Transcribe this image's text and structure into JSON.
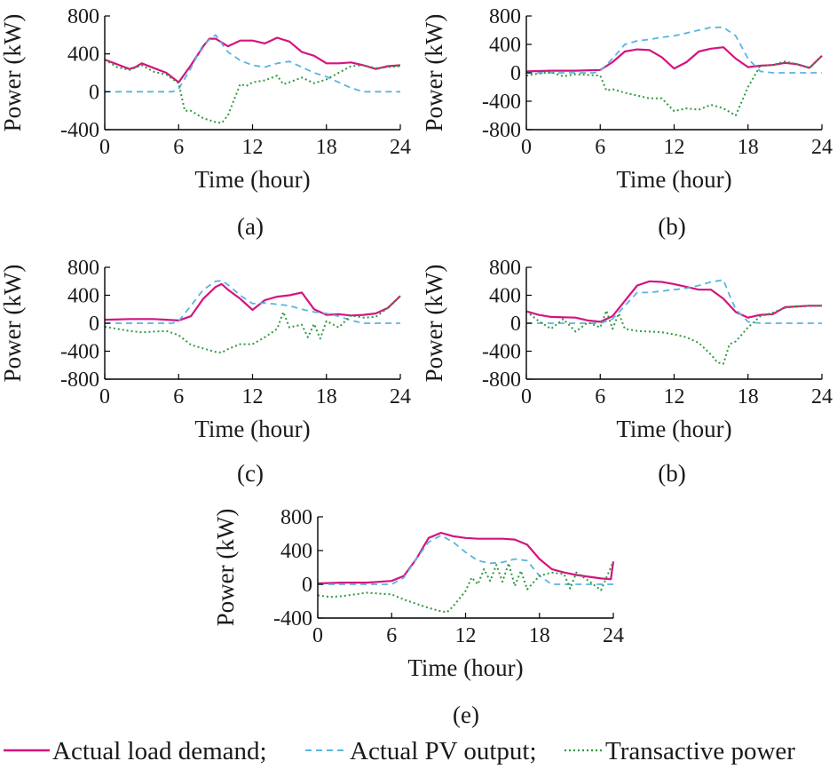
{
  "legend": [
    {
      "label": "Actual load demand;",
      "color": "#d4147f",
      "dash": "solid"
    },
    {
      "label": "Actual PV output;",
      "color": "#5ab4e0",
      "dash": "dashed"
    },
    {
      "label": "Transactive power",
      "color": "#2e9a3e",
      "dash": "dotted"
    }
  ],
  "chart_data": [
    {
      "type": "line",
      "panel_label": "(a)",
      "xlabel": "Time (hour)",
      "ylabel": "Power (kW)",
      "xlim": [
        0,
        24
      ],
      "ylim": [
        -400,
        800
      ],
      "xticks": [
        0,
        6,
        12,
        18,
        24
      ],
      "yticks": [
        -400,
        0,
        400,
        800
      ],
      "grid": false,
      "series": [
        {
          "name": "Actual load demand",
          "x": [
            0,
            1,
            2,
            2.5,
            3,
            4,
            5,
            6,
            7,
            8,
            8.5,
            9,
            10,
            11,
            12,
            13,
            14,
            15,
            16,
            17,
            18,
            19,
            20,
            21,
            22,
            23,
            24
          ],
          "y": [
            340,
            290,
            240,
            260,
            300,
            250,
            200,
            100,
            280,
            480,
            560,
            560,
            480,
            540,
            540,
            510,
            570,
            530,
            420,
            380,
            300,
            300,
            310,
            280,
            240,
            270,
            280
          ]
        },
        {
          "name": "Actual PV output",
          "x": [
            0,
            5.5,
            6,
            7,
            8,
            9,
            10,
            11,
            12,
            13,
            14,
            15,
            16,
            17,
            18,
            19,
            20,
            21,
            22,
            23,
            24
          ],
          "y": [
            0,
            0,
            30,
            250,
            500,
            600,
            420,
            330,
            280,
            260,
            300,
            320,
            260,
            200,
            160,
            100,
            40,
            0,
            0,
            0,
            0
          ]
        },
        {
          "name": "Transactive power",
          "x": [
            0,
            1,
            2,
            3,
            4,
            5,
            6,
            6.5,
            7,
            8,
            9,
            9.5,
            10,
            11,
            11.5,
            12,
            13,
            14,
            14.5,
            15,
            16,
            17,
            18,
            19,
            20,
            21,
            22,
            23,
            24
          ],
          "y": [
            340,
            260,
            230,
            280,
            210,
            180,
            90,
            -200,
            -200,
            -280,
            -320,
            -330,
            -250,
            80,
            60,
            100,
            120,
            170,
            80,
            100,
            150,
            90,
            130,
            200,
            270,
            280,
            250,
            260,
            270
          ]
        }
      ]
    },
    {
      "type": "line",
      "panel_label": "(b)",
      "xlabel": "Time (hour)",
      "ylabel": "Power (kW)",
      "xlim": [
        0,
        24
      ],
      "ylim": [
        -800,
        800
      ],
      "xticks": [
        0,
        6,
        12,
        18,
        24
      ],
      "yticks": [
        -800,
        -400,
        0,
        400,
        800
      ],
      "grid": false,
      "series": [
        {
          "name": "Actual load demand",
          "x": [
            0,
            2,
            4,
            6,
            7,
            8,
            9,
            10,
            11,
            12,
            13,
            14,
            15,
            16,
            17,
            18,
            19,
            20,
            21,
            22,
            23,
            24
          ],
          "y": [
            20,
            30,
            30,
            40,
            150,
            300,
            330,
            320,
            220,
            60,
            150,
            300,
            340,
            360,
            200,
            80,
            100,
            110,
            140,
            120,
            70,
            240
          ]
        },
        {
          "name": "Actual PV output",
          "x": [
            0,
            5.5,
            6,
            7,
            8,
            9,
            10,
            11,
            12,
            13,
            14,
            15,
            16,
            17,
            18,
            19,
            20,
            21,
            22,
            23,
            24
          ],
          "y": [
            0,
            0,
            30,
            200,
            400,
            450,
            470,
            500,
            520,
            560,
            600,
            640,
            640,
            520,
            200,
            20,
            0,
            0,
            0,
            0,
            0
          ]
        },
        {
          "name": "Transactive power",
          "x": [
            0,
            1,
            2,
            3,
            4,
            5,
            6,
            6.5,
            7,
            8,
            9,
            10,
            11,
            12,
            13,
            14,
            15,
            16,
            17,
            18,
            19,
            20,
            21,
            22,
            23,
            24
          ],
          "y": [
            -40,
            -10,
            10,
            -50,
            -20,
            -30,
            -40,
            -250,
            -230,
            -280,
            -320,
            -360,
            -360,
            -540,
            -500,
            -520,
            -450,
            -500,
            -600,
            -200,
            100,
            110,
            160,
            120,
            70,
            240
          ]
        }
      ]
    },
    {
      "type": "line",
      "panel_label": "(c)",
      "xlabel": "Time (hour)",
      "ylabel": "Power (kW)",
      "xlim": [
        0,
        24
      ],
      "ylim": [
        -800,
        800
      ],
      "xticks": [
        0,
        6,
        12,
        18,
        24
      ],
      "yticks": [
        -800,
        -400,
        0,
        400,
        800
      ],
      "grid": false,
      "series": [
        {
          "name": "Actual load demand",
          "x": [
            0,
            2,
            4,
            6,
            7,
            8,
            9,
            9.5,
            10,
            11,
            12,
            13,
            14,
            15,
            16,
            17,
            18,
            19,
            20,
            21,
            22,
            23,
            24
          ],
          "y": [
            50,
            60,
            60,
            40,
            100,
            350,
            520,
            560,
            480,
            350,
            190,
            330,
            380,
            400,
            440,
            200,
            120,
            130,
            110,
            120,
            140,
            220,
            390
          ]
        },
        {
          "name": "Actual PV output",
          "x": [
            0,
            5.5,
            6,
            7,
            8,
            9,
            9.5,
            10,
            11,
            12,
            13,
            14,
            15,
            16,
            17,
            18,
            19,
            20,
            21,
            22,
            23,
            24
          ],
          "y": [
            0,
            0,
            30,
            250,
            480,
            600,
            610,
            550,
            400,
            280,
            290,
            270,
            250,
            200,
            160,
            140,
            100,
            40,
            0,
            0,
            0,
            0
          ]
        },
        {
          "name": "Transactive power",
          "x": [
            0,
            1,
            2,
            3,
            4,
            5,
            6,
            7,
            8,
            9,
            9.5,
            10,
            11,
            12,
            13,
            14,
            14.5,
            15,
            16,
            16.5,
            17,
            17.5,
            18,
            19,
            20,
            21,
            22,
            23,
            24
          ],
          "y": [
            -50,
            -80,
            -110,
            -130,
            -120,
            -110,
            -170,
            -310,
            -360,
            -410,
            -420,
            -370,
            -300,
            -300,
            -200,
            -80,
            160,
            -60,
            -20,
            -200,
            -10,
            -220,
            30,
            -60,
            110,
            80,
            90,
            220,
            390
          ]
        }
      ]
    },
    {
      "type": "line",
      "panel_label": "(b)",
      "xlabel": "Time (hour)",
      "ylabel": "Power (kW)",
      "xlim": [
        0,
        24
      ],
      "ylim": [
        -800,
        800
      ],
      "xticks": [
        0,
        6,
        12,
        18,
        24
      ],
      "yticks": [
        -800,
        -400,
        0,
        400,
        800
      ],
      "grid": false,
      "series": [
        {
          "name": "Actual load demand",
          "x": [
            0,
            1,
            2,
            4,
            5,
            6,
            7,
            8,
            9,
            10,
            11,
            12,
            13,
            14,
            15,
            16,
            17,
            18,
            19,
            20,
            21,
            22,
            23,
            24
          ],
          "y": [
            170,
            120,
            90,
            80,
            40,
            20,
            100,
            320,
            540,
            600,
            590,
            560,
            520,
            480,
            480,
            350,
            160,
            80,
            120,
            130,
            230,
            240,
            250,
            250
          ]
        },
        {
          "name": "Actual PV output",
          "x": [
            0,
            6,
            7,
            8,
            9,
            10,
            11,
            12,
            13,
            14,
            15,
            16,
            16.5,
            17,
            18,
            19,
            20,
            21,
            22,
            23,
            24
          ],
          "y": [
            0,
            0,
            60,
            250,
            440,
            440,
            460,
            480,
            500,
            540,
            590,
            620,
            400,
            200,
            20,
            0,
            0,
            0,
            0,
            0,
            0
          ]
        },
        {
          "name": "Transactive power",
          "x": [
            0,
            1,
            2,
            3,
            4,
            5,
            6,
            6.5,
            7,
            7.5,
            8,
            9,
            10,
            11,
            12,
            13,
            14,
            15,
            15.5,
            16,
            16.5,
            17,
            18,
            19,
            20,
            21,
            22,
            23,
            24
          ],
          "y": [
            170,
            30,
            -80,
            60,
            -120,
            10,
            -60,
            180,
            -80,
            140,
            -80,
            -110,
            -120,
            -130,
            -160,
            -200,
            -280,
            -450,
            -560,
            -580,
            -300,
            -260,
            -60,
            100,
            150,
            220,
            240,
            250,
            250
          ]
        }
      ]
    },
    {
      "type": "line",
      "panel_label": "(e)",
      "xlabel": "Time (hour)",
      "ylabel": "Power (kW)",
      "xlim": [
        0,
        24
      ],
      "ylim": [
        -400,
        800
      ],
      "xticks": [
        0,
        6,
        12,
        18,
        24
      ],
      "yticks": [
        -400,
        0,
        400,
        800
      ],
      "grid": false,
      "series": [
        {
          "name": "Actual load demand",
          "x": [
            0,
            2,
            4,
            6,
            7,
            8,
            9,
            10,
            11,
            12,
            13,
            14,
            15,
            16,
            17,
            18,
            19,
            20,
            21,
            22,
            23,
            23.8,
            24
          ],
          "y": [
            10,
            20,
            20,
            40,
            100,
            300,
            550,
            610,
            570,
            550,
            540,
            540,
            540,
            530,
            470,
            300,
            180,
            140,
            110,
            90,
            70,
            60,
            270
          ]
        },
        {
          "name": "Actual PV output",
          "x": [
            0,
            6,
            7,
            8,
            9,
            10,
            11,
            12,
            13,
            14,
            15,
            16,
            17,
            18,
            19,
            20,
            21,
            22,
            23,
            24
          ],
          "y": [
            0,
            0,
            80,
            300,
            500,
            580,
            500,
            380,
            280,
            250,
            260,
            300,
            280,
            100,
            0,
            0,
            0,
            0,
            0,
            0
          ]
        },
        {
          "name": "Transactive power",
          "x": [
            0,
            1,
            2,
            3,
            4,
            5,
            6,
            7,
            8,
            9,
            10,
            10.5,
            11,
            12,
            12.5,
            13,
            13.5,
            14,
            14.5,
            15,
            15.5,
            16,
            16.5,
            17,
            18,
            19,
            20,
            20.5,
            21,
            22,
            23,
            24
          ],
          "y": [
            -130,
            -150,
            -140,
            -120,
            -100,
            -110,
            -120,
            -180,
            -230,
            -280,
            -320,
            -330,
            -260,
            -80,
            80,
            0,
            180,
            40,
            230,
            30,
            250,
            -20,
            160,
            -60,
            100,
            140,
            120,
            -50,
            140,
            40,
            -70,
            270
          ]
        }
      ]
    }
  ]
}
